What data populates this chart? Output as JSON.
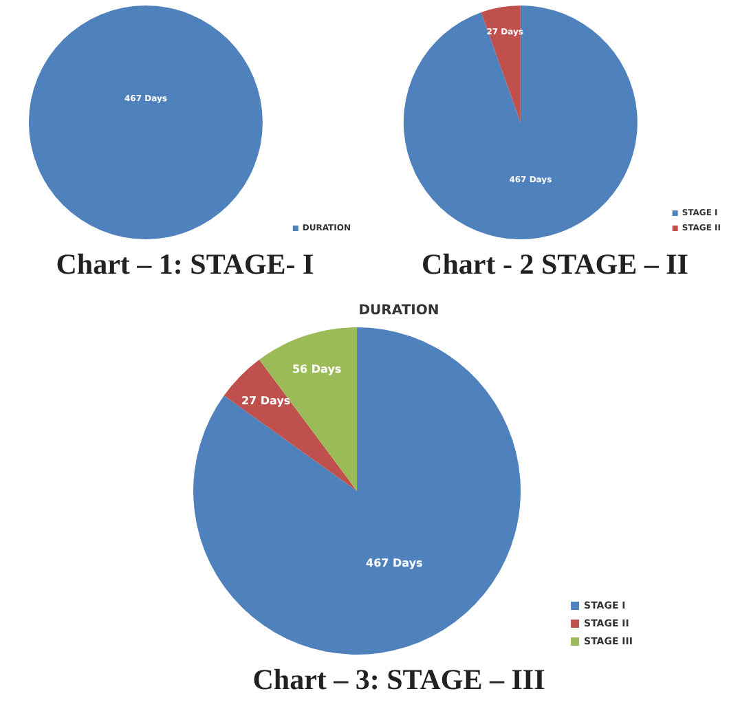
{
  "chart_data": [
    {
      "type": "pie",
      "categories": [
        "DURATION"
      ],
      "values": [
        467
      ],
      "colors": [
        "#4f81bd"
      ],
      "value_labels": [
        "467 Days"
      ],
      "legend": "right",
      "annotations": [
        "Chart – 1: STAGE- I"
      ]
    },
    {
      "type": "pie",
      "categories": [
        "STAGE I",
        "STAGE II"
      ],
      "values": [
        467,
        27
      ],
      "colors": [
        "#4f81bd",
        "#c0504d"
      ],
      "value_labels": [
        "467 Days",
        "27 Days"
      ],
      "legend": "right",
      "annotations": [
        "Chart - 2 STAGE – II"
      ]
    },
    {
      "type": "pie",
      "title": "DURATION",
      "categories": [
        "STAGE I",
        "STAGE II",
        "STAGE III"
      ],
      "values": [
        467,
        27,
        56
      ],
      "colors": [
        "#4f81bd",
        "#c0504d",
        "#9bbb59"
      ],
      "value_labels": [
        "467 Days",
        "27 Days",
        "56 Days"
      ],
      "legend": "right",
      "annotations": [
        "Chart – 3: STAGE – III"
      ]
    }
  ]
}
